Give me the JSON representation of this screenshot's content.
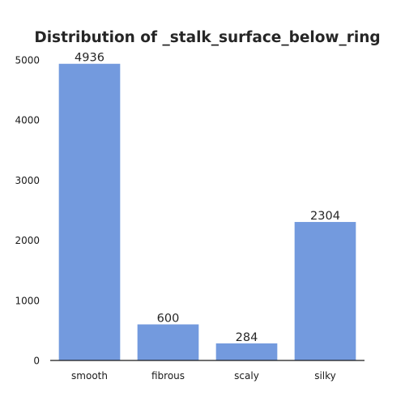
{
  "chart_data": {
    "type": "bar",
    "title": "Distribution of _stalk_surface_below_ring",
    "xlabel": "",
    "ylabel": "",
    "categories": [
      "smooth",
      "fibrous",
      "scaly",
      "silky"
    ],
    "values": [
      4936,
      600,
      284,
      2304
    ],
    "ylim": [
      0,
      5000
    ],
    "yticks": [
      0,
      1000,
      2000,
      3000,
      4000,
      5000
    ],
    "bar_color": "#739ade",
    "grid": false,
    "legend": "none"
  }
}
